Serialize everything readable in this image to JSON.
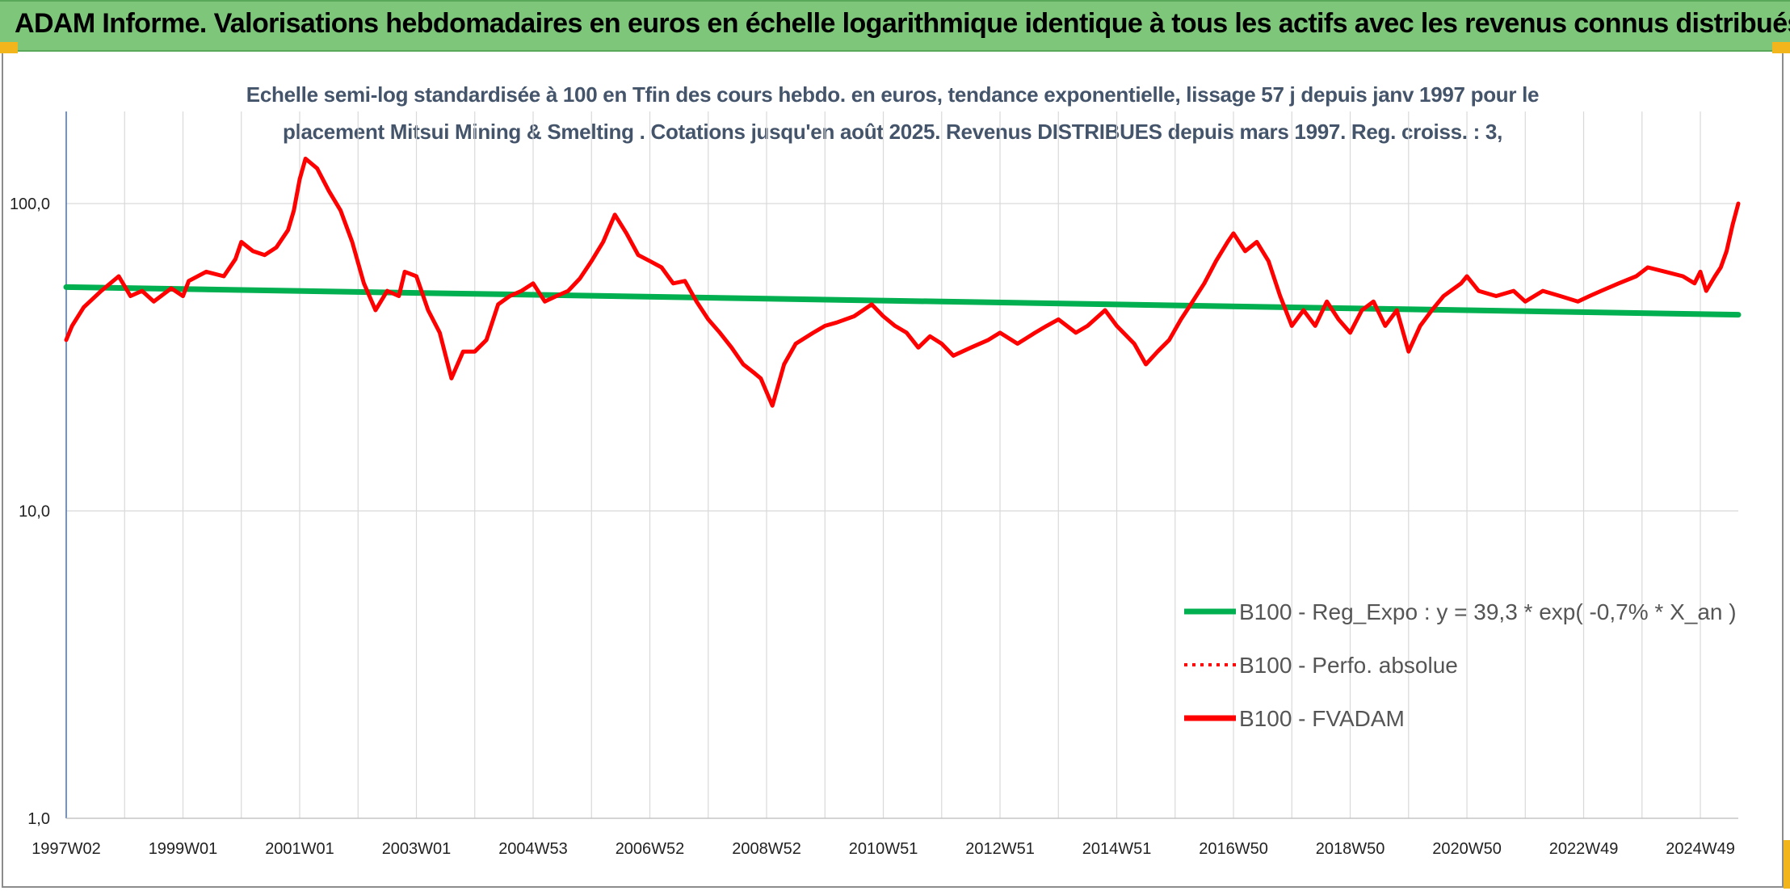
{
  "banner": {
    "title": "ADAM Informe. Valorisations hebdomadaires en euros en échelle logarithmique identique à tous les actifs avec les revenus connus distribués",
    "color": "#7dc67a"
  },
  "chart_data": {
    "type": "line",
    "subtitle_line1": "Echelle semi-log standardisée à 100 en Tfin des cours hebdo. en euros, tendance exponentielle, lissage 57 j depuis janv 1997 pour le",
    "subtitle_line2": "placement Mitsui Mining & Smelting . Cotations jusqu'en août 2025. Revenus DISTRIBUES depuis mars 1997. Reg. croiss. : 3,",
    "y_scale": "log",
    "ylim": [
      1,
      180
    ],
    "y_ticks": [
      {
        "value": 1,
        "label": "1,0"
      },
      {
        "value": 10,
        "label": "10,0"
      },
      {
        "value": 100,
        "label": "100,0"
      }
    ],
    "xlim": [
      1997.0,
      2025.65
    ],
    "x_ticks": [
      {
        "year": 1997.0,
        "label": "1997W02"
      },
      {
        "year": 1999.0,
        "label": "1999W01"
      },
      {
        "year": 2001.0,
        "label": "2001W01"
      },
      {
        "year": 2003.0,
        "label": "2003W01"
      },
      {
        "year": 2005.0,
        "label": "2004W53"
      },
      {
        "year": 2007.0,
        "label": "2006W52"
      },
      {
        "year": 2009.0,
        "label": "2008W52"
      },
      {
        "year": 2011.0,
        "label": "2010W51"
      },
      {
        "year": 2013.0,
        "label": "2012W51"
      },
      {
        "year": 2015.0,
        "label": "2014W51"
      },
      {
        "year": 2017.0,
        "label": "2016W50"
      },
      {
        "year": 2019.0,
        "label": "2018W50"
      },
      {
        "year": 2021.0,
        "label": "2020W50"
      },
      {
        "year": 2023.0,
        "label": "2022W49"
      },
      {
        "year": 2025.0,
        "label": "2024W49"
      }
    ],
    "grid": true,
    "legend_position": "bottom-right",
    "series": [
      {
        "name": "B100 - Reg_Expo : y = 39,3 * exp( -0,7% *  X_an )",
        "color": "#00b050",
        "style": "solid",
        "x": [
          1997.0,
          2025.65
        ],
        "values": [
          53.5,
          43.5
        ]
      },
      {
        "name": "B100 - Perfo. absolue",
        "color": "#ff0000",
        "style": "dotted",
        "x": [],
        "values": []
      },
      {
        "name": "B100 - FVADAM",
        "color": "#ff0000",
        "style": "solid",
        "x": [
          1997.0,
          1997.1,
          1997.3,
          1997.6,
          1997.9,
          1998.1,
          1998.3,
          1998.5,
          1998.8,
          1999.0,
          1999.1,
          1999.4,
          1999.7,
          1999.9,
          2000.0,
          2000.2,
          2000.4,
          2000.6,
          2000.8,
          2000.9,
          2001.0,
          2001.1,
          2001.3,
          2001.5,
          2001.7,
          2001.9,
          2002.1,
          2002.3,
          2002.5,
          2002.7,
          2002.8,
          2003.0,
          2003.2,
          2003.4,
          2003.6,
          2003.8,
          2004.0,
          2004.2,
          2004.4,
          2004.6,
          2004.8,
          2005.0,
          2005.2,
          2005.4,
          2005.6,
          2005.8,
          2006.0,
          2006.2,
          2006.4,
          2006.6,
          2006.8,
          2007.0,
          2007.2,
          2007.4,
          2007.6,
          2007.8,
          2008.0,
          2008.2,
          2008.4,
          2008.6,
          2008.8,
          2008.9,
          2009.1,
          2009.3,
          2009.5,
          2009.8,
          2010.0,
          2010.2,
          2010.5,
          2010.8,
          2011.0,
          2011.2,
          2011.4,
          2011.6,
          2011.8,
          2012.0,
          2012.2,
          2012.5,
          2012.8,
          2013.0,
          2013.3,
          2013.6,
          2013.8,
          2014.0,
          2014.3,
          2014.5,
          2014.8,
          2015.0,
          2015.3,
          2015.5,
          2015.7,
          2015.9,
          2016.1,
          2016.3,
          2016.5,
          2016.7,
          2016.9,
          2017.0,
          2017.2,
          2017.4,
          2017.6,
          2017.8,
          2018.0,
          2018.2,
          2018.4,
          2018.6,
          2018.8,
          2019.0,
          2019.2,
          2019.4,
          2019.6,
          2019.8,
          2020.0,
          2020.2,
          2020.4,
          2020.6,
          2020.9,
          2021.0,
          2021.2,
          2021.5,
          2021.8,
          2022.0,
          2022.3,
          2022.6,
          2022.9,
          2023.1,
          2023.3,
          2023.6,
          2023.9,
          2024.1,
          2024.4,
          2024.7,
          2024.9,
          2025.0,
          2025.1,
          2025.25,
          2025.35,
          2025.45,
          2025.55,
          2025.65
        ],
        "values": [
          36,
          40,
          46,
          52,
          58,
          50,
          52,
          48,
          53,
          50,
          56,
          60,
          58,
          66,
          75,
          70,
          68,
          72,
          82,
          95,
          120,
          140,
          130,
          110,
          95,
          75,
          55,
          45,
          52,
          50,
          60,
          58,
          45,
          38,
          27,
          33,
          33,
          36,
          47,
          50,
          52,
          55,
          48,
          50,
          52,
          57,
          65,
          75,
          92,
          80,
          68,
          65,
          62,
          55,
          56,
          48,
          42,
          38,
          34,
          30,
          28,
          27,
          22,
          30,
          35,
          38,
          40,
          41,
          43,
          47,
          43,
          40,
          38,
          34,
          37,
          35,
          32,
          34,
          36,
          38,
          35,
          38,
          40,
          42,
          38,
          40,
          45,
          40,
          35,
          30,
          33,
          36,
          42,
          48,
          55,
          65,
          75,
          80,
          70,
          75,
          65,
          50,
          40,
          45,
          40,
          48,
          42,
          38,
          45,
          48,
          40,
          45,
          33,
          40,
          45,
          50,
          55,
          58,
          52,
          50,
          52,
          48,
          52,
          50,
          48,
          50,
          52,
          55,
          58,
          62,
          60,
          58,
          55,
          60,
          52,
          58,
          62,
          70,
          85,
          100
        ]
      }
    ]
  }
}
